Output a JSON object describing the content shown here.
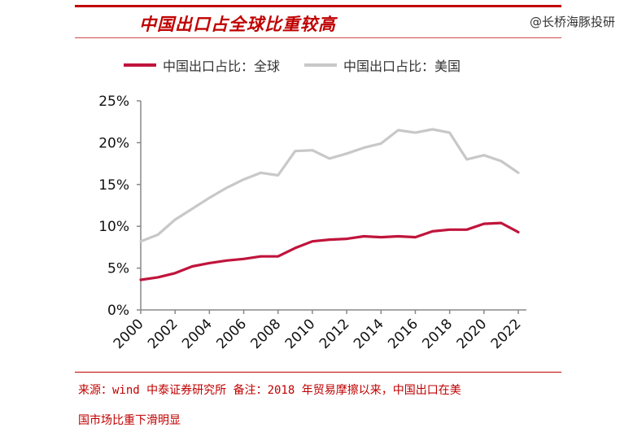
{
  "title": "中国出口占全球比重较高",
  "watermark": "@长桥海豚投研",
  "footer": {
    "line1": "来源：wind 中泰证券研究所 备注：2018 年贸易摩擦以来，中国出口在美",
    "line2": "国市场比重下滑明显"
  },
  "colors": {
    "global": "#c0143c",
    "us": "#c8c8c8",
    "brand": "#c00000"
  },
  "chart_data": {
    "type": "line",
    "xlabel": "",
    "ylabel": "",
    "ylim": [
      0,
      25
    ],
    "yticks": [
      "0%",
      "5%",
      "10%",
      "15%",
      "20%",
      "25%"
    ],
    "xticks": [
      "2000",
      "2002",
      "2004",
      "2006",
      "2008",
      "2010",
      "2012",
      "2014",
      "2016",
      "2018",
      "2020",
      "2022"
    ],
    "x": [
      2000,
      2001,
      2002,
      2003,
      2004,
      2005,
      2006,
      2007,
      2008,
      2009,
      2010,
      2011,
      2012,
      2013,
      2014,
      2015,
      2016,
      2017,
      2018,
      2019,
      2020,
      2021,
      2022
    ],
    "series": [
      {
        "name": "中国出口占比：全球",
        "color": "#c0143c",
        "values": [
          3.6,
          3.9,
          4.4,
          5.2,
          5.6,
          5.9,
          6.1,
          6.4,
          6.4,
          7.4,
          8.2,
          8.4,
          8.5,
          8.8,
          8.7,
          8.8,
          8.7,
          9.4,
          9.6,
          9.6,
          10.3,
          10.4,
          9.3
        ]
      },
      {
        "name": "中国出口占比：美国",
        "color": "#c8c8c8",
        "values": [
          8.2,
          9.0,
          10.8,
          12.1,
          13.4,
          14.6,
          15.6,
          16.4,
          16.1,
          19.0,
          19.1,
          18.1,
          18.7,
          19.4,
          19.9,
          21.5,
          21.2,
          21.6,
          21.2,
          18.0,
          18.5,
          17.8,
          16.4
        ]
      }
    ],
    "grid": false,
    "legend": "top"
  }
}
